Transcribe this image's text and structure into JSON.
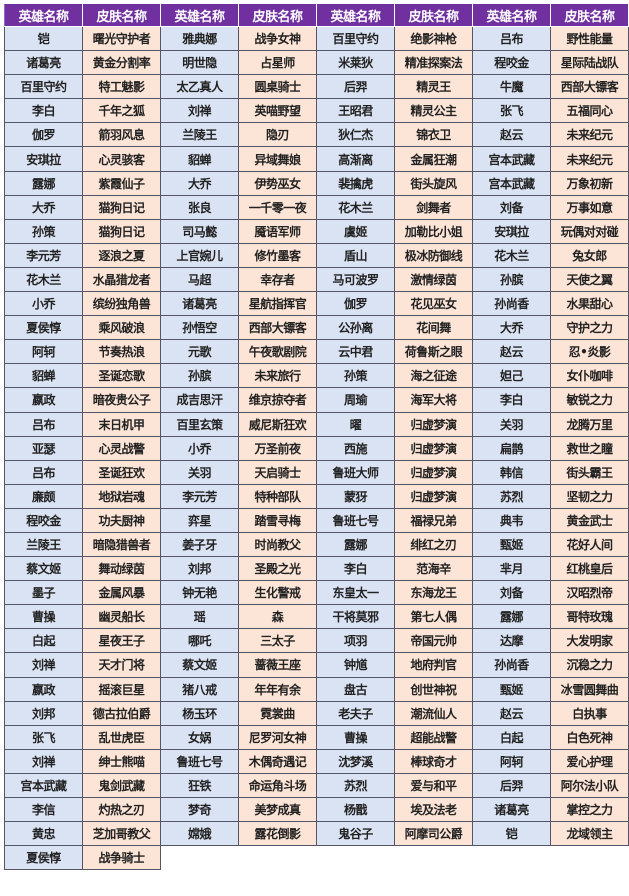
{
  "colors": {
    "header": "#7030a0",
    "hero_cell": "#dae3f3",
    "skin_cell": "#fce4d6"
  },
  "headers": [
    "英雄名称",
    "皮肤名称",
    "英雄名称",
    "皮肤名称",
    "英雄名称",
    "皮肤名称",
    "英雄名称",
    "皮肤名称"
  ],
  "rows": [
    [
      "铠",
      "曙光守护者",
      "雅典娜",
      "战争女神",
      "百里守约",
      "绝影神枪",
      "吕布",
      "野性能量"
    ],
    [
      "诸葛亮",
      "黄金分割率",
      "明世隐",
      "占星师",
      "米莱狄",
      "精准探案法",
      "程咬金",
      "星际陆战队"
    ],
    [
      "百里守约",
      "特工魅影",
      "太乙真人",
      "圆桌骑士",
      "后羿",
      "精灵王",
      "牛魔",
      "西部大镖客"
    ],
    [
      "李白",
      "千年之狐",
      "刘禅",
      "英喵野望",
      "王昭君",
      "精灵公主",
      "张飞",
      "五福同心"
    ],
    [
      "伽罗",
      "箭羽风息",
      "兰陵王",
      "隐刃",
      "狄仁杰",
      "锦衣卫",
      "赵云",
      "未来纪元"
    ],
    [
      "安琪拉",
      "心灵骇客",
      "貂蝉",
      "异域舞娘",
      "高渐离",
      "金属狂潮",
      "宫本武藏",
      "未来纪元"
    ],
    [
      "露娜",
      "紫霞仙子",
      "大乔",
      "伊势巫女",
      "裴擒虎",
      "街头旋风",
      "宫本武藏",
      "万象初新"
    ],
    [
      "大乔",
      "猫狗日记",
      "张良",
      "一千零一夜",
      "花木兰",
      "剑舞者",
      "刘备",
      "万事如意"
    ],
    [
      "孙策",
      "猫狗日记",
      "司马懿",
      "魇语军师",
      "虞姬",
      "加勒比小姐",
      "安琪拉",
      "玩偶对对碰"
    ],
    [
      "李元芳",
      "逐浪之夏",
      "上官婉儿",
      "修竹墨客",
      "盾山",
      "极冰防御线",
      "花木兰",
      "兔女郎"
    ],
    [
      "花木兰",
      "水晶猎龙者",
      "马超",
      "幸存者",
      "马可波罗",
      "激情绿茵",
      "孙膑",
      "天使之翼"
    ],
    [
      "小乔",
      "缤纷独角兽",
      "诸葛亮",
      "星航指挥官",
      "伽罗",
      "花见巫女",
      "孙尚香",
      "水果甜心"
    ],
    [
      "夏侯惇",
      "乘风破浪",
      "孙悟空",
      "西部大镖客",
      "公孙离",
      "花间舞",
      "大乔",
      "守护之力"
    ],
    [
      "阿轲",
      "节奏热浪",
      "元歌",
      "午夜歌剧院",
      "云中君",
      "荷鲁斯之眼",
      "赵云",
      "忍•炎影"
    ],
    [
      "貂蝉",
      "圣诞恋歌",
      "孙膑",
      "未来旅行",
      "孙策",
      "海之征途",
      "妲己",
      "女仆咖啡"
    ],
    [
      "嬴政",
      "暗夜贵公子",
      "成吉思汗",
      "维京掠夺者",
      "周瑜",
      "海军大将",
      "李白",
      "敏锐之力"
    ],
    [
      "吕布",
      "末日机甲",
      "百里玄策",
      "威尼斯狂欢",
      "曜",
      "归虚梦演",
      "关羽",
      "龙腾万里"
    ],
    [
      "亚瑟",
      "心灵战警",
      "小乔",
      "万圣前夜",
      "西施",
      "归虚梦演",
      "扁鹊",
      "救世之瞳"
    ],
    [
      "吕布",
      "圣诞狂欢",
      "关羽",
      "天启骑士",
      "鲁班大师",
      "归虚梦演",
      "韩信",
      "街头霸王"
    ],
    [
      "廉颇",
      "地狱岩魂",
      "李元芳",
      "特种部队",
      "蒙犽",
      "归虚梦演",
      "苏烈",
      "坚韧之力"
    ],
    [
      "程咬金",
      "功夫厨神",
      "弈星",
      "踏雪寻梅",
      "鲁班七号",
      "福禄兄弟",
      "典韦",
      "黄金武士"
    ],
    [
      "兰陵王",
      "暗隐猎兽者",
      "姜子牙",
      "时尚教父",
      "露娜",
      "绯红之刃",
      "甄姬",
      "花好人间"
    ],
    [
      "蔡文姬",
      "舞动绿茵",
      "刘邦",
      "圣殿之光",
      "李白",
      "范海辛",
      "芈月",
      "红桃皇后"
    ],
    [
      "墨子",
      "金属风暴",
      "钟无艳",
      "生化警戒",
      "东皇太一",
      "东海龙王",
      "刘备",
      "汉昭烈帝"
    ],
    [
      "曹操",
      "幽灵船长",
      "瑶",
      "森",
      "干将莫邪",
      "第七人偶",
      "露娜",
      "哥特玫瑰"
    ],
    [
      "白起",
      "星夜王子",
      "哪吒",
      "三太子",
      "项羽",
      "帝国元帅",
      "达摩",
      "大发明家"
    ],
    [
      "刘禅",
      "天才门将",
      "蔡文姬",
      "蔷薇王座",
      "钟馗",
      "地府判官",
      "孙尚香",
      "沉稳之力"
    ],
    [
      "嬴政",
      "摇滚巨星",
      "猪八戒",
      "年年有余",
      "盘古",
      "创世神祝",
      "甄姬",
      "冰雪圆舞曲"
    ],
    [
      "刘邦",
      "德古拉伯爵",
      "杨玉环",
      "霓裳曲",
      "老夫子",
      "潮流仙人",
      "赵云",
      "白执事"
    ],
    [
      "张飞",
      "乱世虎臣",
      "女娲",
      "尼罗河女神",
      "曹操",
      "超能战警",
      "白起",
      "白色死神"
    ],
    [
      "刘禅",
      "绅士熊喵",
      "鲁班七号",
      "木偶奇遇记",
      "沈梦溪",
      "棒球奇才",
      "阿轲",
      "爱心护理"
    ],
    [
      "宫本武藏",
      "鬼剑武藏",
      "狂铁",
      "命运角斗场",
      "苏烈",
      "爱与和平",
      "后羿",
      "阿尔法小队"
    ],
    [
      "李信",
      "灼热之刃",
      "梦奇",
      "美梦成真",
      "杨戬",
      "埃及法老",
      "诸葛亮",
      "掌控之力"
    ],
    [
      "黄忠",
      "芝加哥教父",
      "嫦娥",
      "露花倒影",
      "鬼谷子",
      "阿摩司公爵",
      "铠",
      "龙域领主"
    ],
    [
      "夏侯惇",
      "战争骑士"
    ]
  ]
}
